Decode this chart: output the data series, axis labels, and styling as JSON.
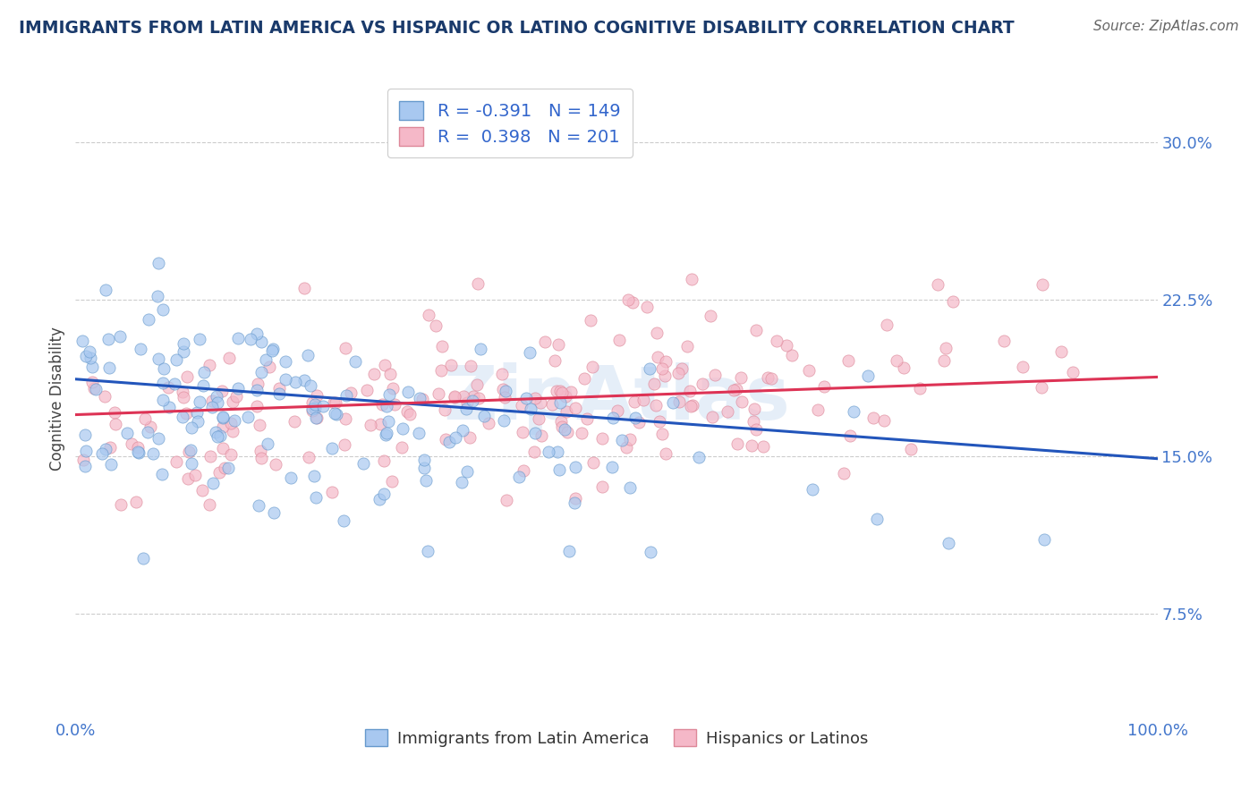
{
  "title": "IMMIGRANTS FROM LATIN AMERICA VS HISPANIC OR LATINO COGNITIVE DISABILITY CORRELATION CHART",
  "source": "Source: ZipAtlas.com",
  "ylabel": "Cognitive Disability",
  "xlim": [
    0.0,
    1.0
  ],
  "ylim": [
    0.025,
    0.33
  ],
  "yticks": [
    0.075,
    0.15,
    0.225,
    0.3
  ],
  "ytick_labels": [
    "7.5%",
    "15.0%",
    "22.5%",
    "30.0%"
  ],
  "xticks": [
    0.0,
    1.0
  ],
  "xtick_labels": [
    "0.0%",
    "100.0%"
  ],
  "series1_color": "#a8c8f0",
  "series1_edge": "#6699cc",
  "series2_color": "#f5b8c8",
  "series2_edge": "#dd8899",
  "trend1_color": "#2255bb",
  "trend2_color": "#dd3355",
  "trend1_slope": -0.038,
  "trend1_intercept": 0.187,
  "trend2_slope": 0.018,
  "trend2_intercept": 0.17,
  "r1": -0.391,
  "n1": 149,
  "r2": 0.398,
  "n2": 201,
  "legend_label1": "Immigrants from Latin America",
  "legend_label2": "Hispanics or Latinos",
  "title_color": "#1a3a6b",
  "source_color": "#666666",
  "axis_tick_color": "#4477cc",
  "watermark": "ZipAtlas",
  "background_color": "#ffffff",
  "grid_color": "#cccccc",
  "axis_label_color": "#444444",
  "legend_r_color": "#333333",
  "legend_n_color": "#3366cc"
}
